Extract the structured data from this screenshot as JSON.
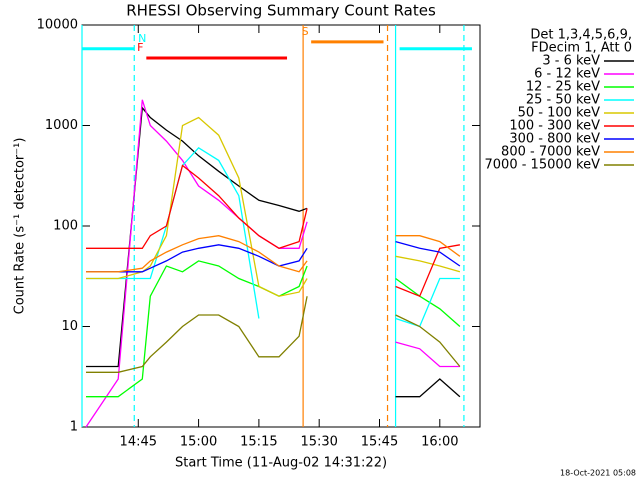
{
  "chart_data": {
    "type": "line",
    "title": "RHESSI Observing Summary Count Rates",
    "xlabel": "Start Time (11-Aug-02 14:31:22)",
    "ylabel": "Count Rate (s⁻¹ detector⁻¹)",
    "legend_header": [
      "Det 1,3,4,5,6,9,",
      "FDecim 1, Att 0"
    ],
    "footer": "18-Oct-2021 05:08",
    "legend": "right",
    "ylog": true,
    "xlim": [
      "14:31",
      "16:10"
    ],
    "ylim": [
      1,
      10000
    ],
    "xticks": [
      "14:45",
      "15:00",
      "15:15",
      "15:30",
      "15:45",
      "16:00"
    ],
    "yticks": [
      1,
      10,
      100,
      1000,
      10000
    ],
    "x": [
      "14:32",
      "14:40",
      "14:46",
      "14:48",
      "14:52",
      "14:56",
      "15:00",
      "15:05",
      "15:10",
      "15:15",
      "15:20",
      "15:25",
      "15:27",
      "15:38",
      "15:49",
      "15:55",
      "16:00",
      "16:05"
    ],
    "series": [
      {
        "name": "3 - 6 keV",
        "color": "#000000",
        "values": [
          4,
          4,
          1500,
          1200,
          900,
          700,
          500,
          350,
          250,
          180,
          160,
          140,
          150,
          null,
          2,
          2,
          3,
          2
        ]
      },
      {
        "name": "6 - 12 keV",
        "color": "#ff00ff",
        "values": [
          1,
          3,
          1800,
          1000,
          700,
          450,
          250,
          180,
          120,
          80,
          60,
          60,
          110,
          null,
          7,
          6,
          4,
          4
        ]
      },
      {
        "name": "12 - 25 keV",
        "color": "#00ff00",
        "values": [
          2,
          2,
          3,
          20,
          40,
          35,
          45,
          40,
          30,
          25,
          20,
          25,
          40,
          null,
          30,
          20,
          15,
          10
        ]
      },
      {
        "name": "25 - 50 keV",
        "color": "#00ffff",
        "values": [
          30,
          30,
          30,
          30,
          100,
          400,
          600,
          450,
          200,
          12,
          null,
          null,
          null,
          null,
          12,
          10,
          30,
          30
        ]
      },
      {
        "name": "50 - 100 keV",
        "color": "#d8c800",
        "values": [
          30,
          30,
          35,
          40,
          80,
          1000,
          1200,
          800,
          300,
          25,
          20,
          22,
          30,
          null,
          50,
          45,
          40,
          35
        ]
      },
      {
        "name": "100 - 300 keV",
        "color": "#ff0000",
        "values": [
          60,
          60,
          60,
          80,
          100,
          400,
          300,
          200,
          120,
          80,
          60,
          70,
          150,
          null,
          25,
          20,
          60,
          65
        ]
      },
      {
        "name": "300 - 800 keV",
        "color": "#0000ff",
        "values": [
          35,
          35,
          35,
          38,
          45,
          55,
          60,
          65,
          60,
          50,
          40,
          45,
          60,
          null,
          70,
          60,
          55,
          40
        ]
      },
      {
        "name": "800 - 7000 keV",
        "color": "#ff8000",
        "values": [
          35,
          35,
          38,
          45,
          55,
          65,
          75,
          80,
          70,
          55,
          40,
          35,
          45,
          null,
          80,
          80,
          70,
          50
        ]
      },
      {
        "name": "7000 - 15000 keV",
        "color": "#808000",
        "values": [
          3.5,
          3.5,
          4,
          5,
          7,
          10,
          13,
          13,
          10,
          5,
          5,
          8,
          20,
          null,
          13,
          10,
          7,
          4
        ]
      }
    ],
    "flags": [
      {
        "label": "N",
        "color": "#00ffff",
        "start": "14:31",
        "end": "14:44",
        "level": 5800
      },
      {
        "color": "#00ffff",
        "start": "15:50",
        "end": "16:08",
        "level": 5800
      },
      {
        "label": "F",
        "color": "#ff0000",
        "start": "14:47",
        "end": "15:22",
        "level": 4700
      },
      {
        "label": "S",
        "color": "#ff8000",
        "start": "15:28",
        "end": "15:46",
        "level": 6800
      }
    ],
    "vlines": [
      {
        "x": "14:31",
        "color": "#00ffff",
        "dashed": false
      },
      {
        "x": "14:44",
        "color": "#00ffff",
        "dashed": true
      },
      {
        "x": "15:26",
        "color": "#ff8000",
        "dashed": false
      },
      {
        "x": "15:47",
        "color": "#ff8000",
        "dashed": true
      },
      {
        "x": "15:49",
        "color": "#00ffff",
        "dashed": false
      },
      {
        "x": "16:06",
        "color": "#00ffff",
        "dashed": true
      }
    ]
  }
}
